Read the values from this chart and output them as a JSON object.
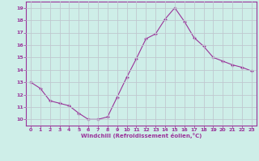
{
  "x": [
    0,
    1,
    2,
    3,
    4,
    5,
    6,
    7,
    8,
    9,
    10,
    11,
    12,
    13,
    14,
    15,
    16,
    17,
    18,
    19,
    20,
    21,
    22,
    23
  ],
  "y": [
    13.0,
    12.5,
    11.5,
    11.3,
    11.1,
    10.5,
    10.0,
    10.0,
    10.2,
    11.8,
    13.4,
    14.9,
    16.5,
    16.9,
    18.1,
    19.0,
    17.9,
    16.6,
    15.9,
    15.0,
    14.7,
    14.4,
    14.2,
    13.9
  ],
  "line_color": "#993399",
  "marker": "+",
  "marker_size": 3,
  "bg_color": "#caf0e0",
  "grid_color": "#b0c8c8",
  "xlabel": "Windchill (Refroidissement éolien,°C)",
  "xlabel_color": "#993399",
  "tick_color": "#993399",
  "label_color": "#993399",
  "ylim": [
    9.5,
    19.5
  ],
  "xlim": [
    -0.5,
    23.5
  ],
  "yticks": [
    10,
    11,
    12,
    13,
    14,
    15,
    16,
    17,
    18,
    19
  ],
  "xticks": [
    0,
    1,
    2,
    3,
    4,
    5,
    6,
    7,
    8,
    9,
    10,
    11,
    12,
    13,
    14,
    15,
    16,
    17,
    18,
    19,
    20,
    21,
    22,
    23
  ],
  "spine_color": "#993399"
}
